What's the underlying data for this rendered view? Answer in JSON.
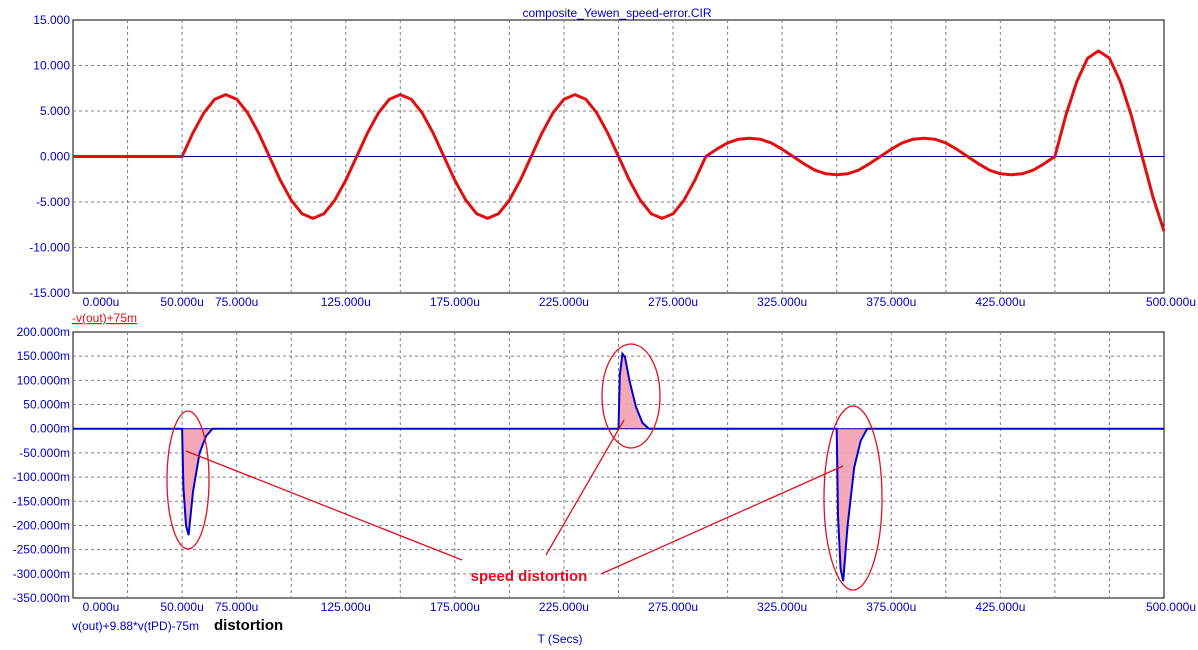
{
  "title": "composite_Yewen_speed-error.CIR",
  "colors": {
    "axis_text": "#0000cc",
    "grid": "#808080",
    "trace_top": "#e01010",
    "trace_bottom": "#0000d0",
    "fill": "#f4a0b0",
    "annotation": "#e01020",
    "zero_line": "#000080"
  },
  "chart_data": [
    {
      "type": "line",
      "title": "composite_Yewen_speed-error.CIR",
      "ylabel": "-v(out)+75m",
      "xlim": [
        0,
        500
      ],
      "ylim": [
        -15,
        15
      ],
      "x_unit": "u",
      "xtick_values": [
        0,
        50,
        75,
        125,
        175,
        225,
        275,
        325,
        375,
        425,
        500
      ],
      "xtick_labels": [
        "0.000u",
        "50.000u",
        "75.000u",
        "125.000u",
        "175.000u",
        "225.000u",
        "275.000u",
        "325.000u",
        "375.000u",
        "425.000u",
        "500.000u"
      ],
      "ytick_values": [
        15,
        10,
        5,
        0,
        -5,
        -10,
        -15
      ],
      "ytick_labels": [
        "15.000",
        "10.000",
        "5.000",
        "0.000",
        "-5.000",
        "-10.000",
        "-15.000"
      ],
      "grid": true,
      "series": {
        "x": [
          0,
          50,
          55,
          60,
          65,
          70,
          75,
          80,
          85,
          90,
          95,
          100,
          105,
          110,
          115,
          120,
          125,
          130,
          135,
          140,
          145,
          150,
          155,
          160,
          165,
          170,
          175,
          180,
          185,
          190,
          195,
          200,
          205,
          210,
          215,
          220,
          225,
          230,
          235,
          240,
          245,
          250,
          255,
          260,
          265,
          270,
          275,
          280,
          285,
          290,
          295,
          300,
          305,
          310,
          315,
          320,
          325,
          330,
          335,
          340,
          345,
          350,
          355,
          360,
          365,
          370,
          375,
          380,
          385,
          390,
          395,
          400,
          405,
          410,
          415,
          420,
          425,
          430,
          435,
          440,
          445,
          450,
          455,
          460,
          465,
          470,
          475,
          480,
          485,
          490,
          495,
          500
        ],
        "y": [
          0,
          0,
          2.6,
          4.8,
          6.3,
          6.8,
          6.3,
          4.8,
          2.6,
          0,
          -2.6,
          -4.8,
          -6.3,
          -6.8,
          -6.3,
          -4.8,
          -2.6,
          0,
          2.6,
          4.8,
          6.3,
          6.8,
          6.3,
          4.8,
          2.6,
          0,
          -2.6,
          -4.8,
          -6.3,
          -6.8,
          -6.3,
          -4.8,
          -2.6,
          0,
          2.6,
          4.8,
          6.3,
          6.8,
          6.3,
          4.8,
          2.6,
          0,
          -2.6,
          -4.8,
          -6.3,
          -6.8,
          -6.3,
          -4.8,
          -2.6,
          0,
          0.8,
          1.5,
          1.9,
          2.0,
          1.9,
          1.5,
          0.8,
          0,
          -0.8,
          -1.5,
          -1.9,
          -2.0,
          -1.9,
          -1.5,
          -0.8,
          0,
          0.8,
          1.5,
          1.9,
          2.0,
          1.9,
          1.5,
          0.8,
          0,
          -0.8,
          -1.5,
          -1.9,
          -2.0,
          -1.9,
          -1.5,
          -0.8,
          0,
          4.5,
          8.2,
          10.8,
          11.6,
          10.8,
          8.2,
          4.5,
          0,
          -4.5,
          -8.2
        ]
      }
    },
    {
      "type": "line",
      "xlabel": "T (Secs)",
      "ylabel": "v(out)+9.88*v(tPD)-75m",
      "legend_note": "distortion",
      "xlim": [
        0,
        500
      ],
      "ylim": [
        -350,
        200
      ],
      "y_unit": "m",
      "xtick_values": [
        0,
        50,
        75,
        125,
        175,
        225,
        275,
        325,
        375,
        425,
        500
      ],
      "xtick_labels": [
        "0.000u",
        "50.000u",
        "75.000u",
        "125.000u",
        "175.000u",
        "225.000u",
        "275.000u",
        "325.000u",
        "375.000u",
        "425.000u",
        "500.000u"
      ],
      "ytick_values": [
        200,
        150,
        100,
        50,
        0,
        -50,
        -100,
        -150,
        -200,
        -250,
        -300,
        -350
      ],
      "ytick_labels": [
        "200.000m",
        "150.000m",
        "100.000m",
        "50.000m",
        "0.000m",
        "-50.000m",
        "-100.000m",
        "-150.000m",
        "-200.000m",
        "-250.000m",
        "-300.000m",
        "-350.000m"
      ],
      "grid": true,
      "series": {
        "x": [
          0,
          50,
          50.6,
          51.8,
          53,
          55,
          58,
          61,
          64,
          250,
          250.6,
          251.8,
          253,
          255,
          258,
          261,
          264,
          350,
          350.6,
          351.8,
          353,
          355,
          358,
          361,
          364,
          500
        ],
        "y": [
          0,
          0,
          -120,
          -200,
          -220,
          -130,
          -50,
          -15,
          0,
          0,
          110,
          155,
          148,
          100,
          45,
          12,
          0,
          0,
          -180,
          -290,
          -315,
          -200,
          -80,
          -25,
          0,
          0
        ]
      },
      "annotation": "speed distortion"
    }
  ]
}
